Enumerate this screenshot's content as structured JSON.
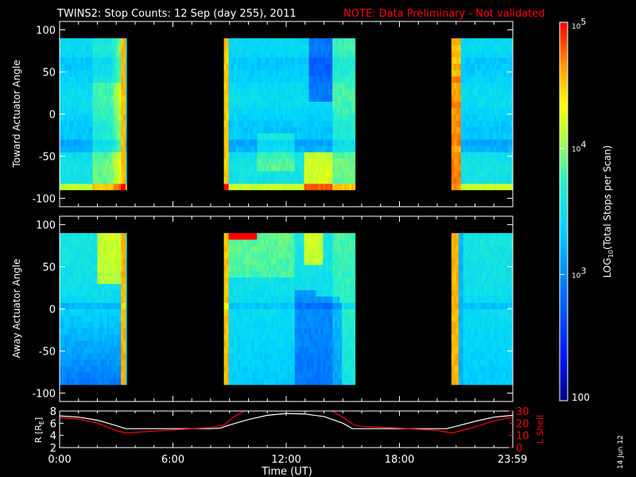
{
  "title": "TWINS2: Stop Counts: 12 Sep (day 255), 2011",
  "note": "NOTE: Data Preliminary - Not validated",
  "date_stamp": "14 Jun 12",
  "colors": {
    "background": "#000000",
    "axis": "#ffffff",
    "note": "#ff0000",
    "r_line": "#ffffff",
    "lshell_line": "#ff0000"
  },
  "chart_data": [
    {
      "type": "heatmap",
      "name": "toward",
      "ylabel": "Toward Actuator Angle",
      "ylim": [
        -110,
        110
      ],
      "yticks": [
        100,
        50,
        0,
        -50,
        -100
      ],
      "xlim": [
        0,
        24
      ],
      "data_segments_ut_hours": [
        [
          0,
          3.55
        ],
        [
          8.7,
          15.65
        ],
        [
          20.75,
          24
        ]
      ],
      "angle_range": [
        -90,
        90
      ]
    },
    {
      "type": "heatmap",
      "name": "away",
      "ylabel": "Away Actuator Angle",
      "ylim": [
        -110,
        110
      ],
      "yticks": [
        100,
        50,
        0,
        -50,
        -100
      ],
      "xlim": [
        0,
        24
      ],
      "data_segments_ut_hours": [
        [
          0,
          3.55
        ],
        [
          8.7,
          15.65
        ],
        [
          20.75,
          24
        ]
      ],
      "angle_range": [
        -90,
        90
      ]
    },
    {
      "type": "line",
      "name": "orbit",
      "ylabel": "R [R_E]",
      "y2label": "L Shell",
      "ylim": [
        2,
        8
      ],
      "yticks": [
        "2",
        "4",
        "6",
        "8"
      ],
      "y2lim": [
        0,
        30
      ],
      "y2ticks": [
        "0",
        "10",
        "20",
        "30"
      ],
      "xlabel": "Time (UT)",
      "xticks": [
        "0:00",
        "6:00",
        "12:00",
        "18:00",
        "23:59"
      ],
      "xtick_values": [
        0,
        6,
        12,
        18,
        23.983
      ],
      "xlim": [
        0,
        24
      ],
      "series": [
        {
          "key": "R",
          "axis": "left",
          "x": [
            0,
            1,
            2,
            3,
            3.5,
            4,
            6,
            8,
            8.5,
            9,
            10,
            11,
            12,
            13,
            14,
            15,
            15.5,
            16,
            18,
            20,
            20.5,
            21,
            22,
            23,
            24
          ],
          "values": [
            7.2,
            7.0,
            6.5,
            5.6,
            5.1,
            5.1,
            5.1,
            5.1,
            5.2,
            5.7,
            6.6,
            7.3,
            7.6,
            7.5,
            7.1,
            6.0,
            5.1,
            5.1,
            5.1,
            5.1,
            5.1,
            5.5,
            6.3,
            7.0,
            7.3
          ]
        },
        {
          "key": "L",
          "axis": "right",
          "x": [
            0,
            1,
            2,
            3,
            3.5,
            6,
            8,
            8.7,
            9.2,
            10,
            14.2,
            15,
            15.6,
            16,
            18,
            20,
            20.8,
            22,
            23,
            24
          ],
          "values": [
            24.5,
            23.5,
            20,
            14,
            12,
            14.5,
            16.5,
            18.5,
            25,
            32,
            32,
            25,
            18.5,
            17.5,
            16,
            14,
            12,
            17,
            22,
            25
          ]
        }
      ]
    }
  ],
  "colorbar": {
    "label": "LOG10(Total Stops per Scan)",
    "label_main": "LOG",
    "label_sub": "10",
    "label_rest": "(Total Stops per Scan)",
    "log_min": 2,
    "log_max": 5,
    "ticks": [
      {
        "base": "10",
        "exp": "5"
      },
      {
        "base": "10",
        "exp": "4"
      },
      {
        "base": "10",
        "exp": "3"
      },
      {
        "base": "100",
        "exp": ""
      }
    ],
    "tick_log_values": [
      5,
      4,
      3,
      2
    ]
  }
}
